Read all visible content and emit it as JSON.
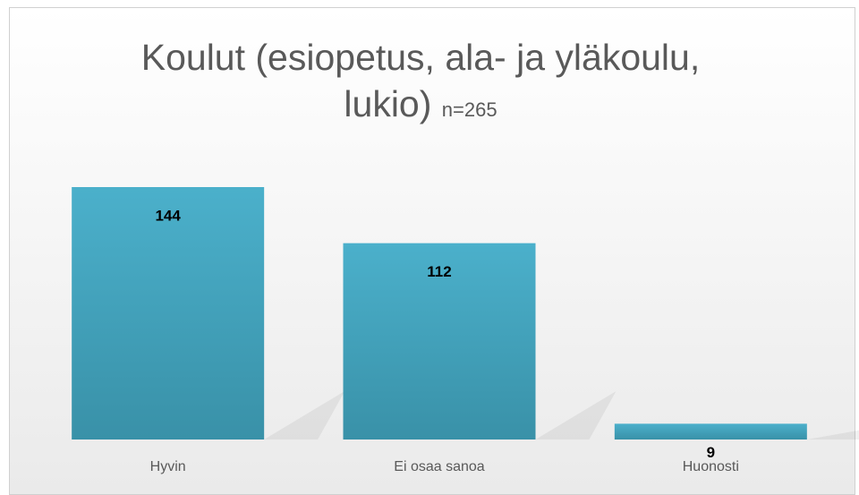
{
  "chart_data": {
    "type": "bar",
    "title": "Koulut (esiopetus, ala- ja yläkoulu, lukio)",
    "subtitle": "n=265",
    "categories": [
      "Hyvin",
      "Ei osaa sanoa",
      "Huonosti"
    ],
    "values": [
      144,
      112,
      9
    ],
    "color": "#4bacc6"
  }
}
